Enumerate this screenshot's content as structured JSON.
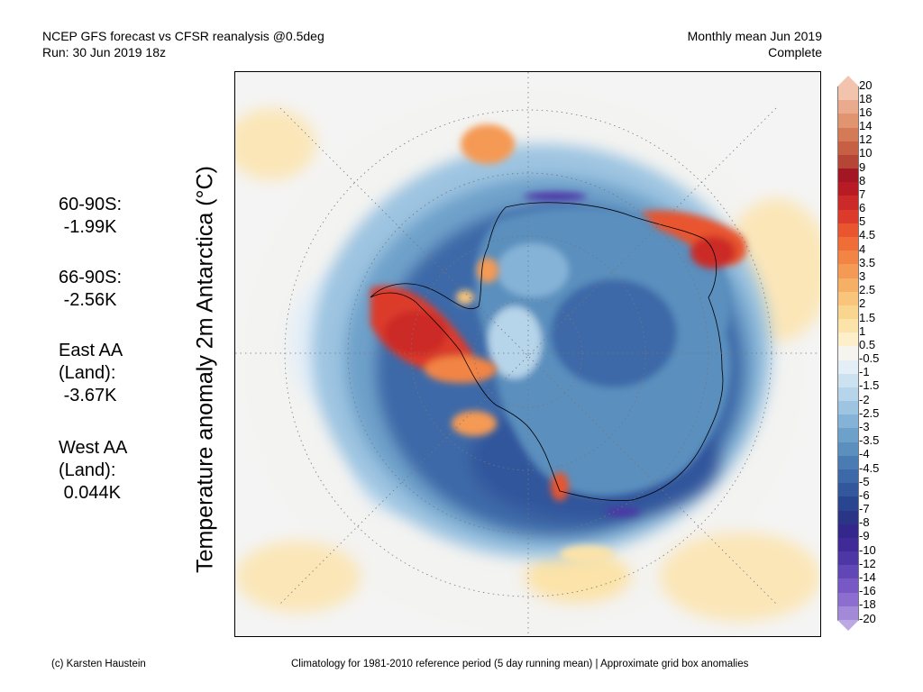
{
  "header": {
    "title_line1": "NCEP GFS forecast vs CFSR reanalysis @0.5deg",
    "title_line2": "Run: 30 Jun 2019 18z",
    "right_line1": "Monthly mean Jun 2019",
    "right_line2": "Complete"
  },
  "axis": {
    "ylabel": "Temperature anomaly 2m Antarctica (°C)"
  },
  "stats": [
    {
      "label": "60-90S:",
      "value": "-1.99K"
    },
    {
      "label": "66-90S:",
      "value": "-2.56K"
    },
    {
      "label": "East AA\n(Land):",
      "value": "-3.67K"
    },
    {
      "label": "West AA\n(Land):",
      "value": "0.044K"
    }
  ],
  "colorbar": {
    "labels": [
      "20",
      "18",
      "16",
      "14",
      "12",
      "10",
      "9",
      "8",
      "7",
      "6",
      "5",
      "4.5",
      "4",
      "3.5",
      "3",
      "2.5",
      "2",
      "1.5",
      "1",
      "0.5",
      "-0.5",
      "-1",
      "-1.5",
      "-2",
      "-2.5",
      "-3",
      "-3.5",
      "-4",
      "-4.5",
      "-5",
      "-6",
      "-7",
      "-8",
      "-9",
      "-10",
      "-12",
      "-14",
      "-16",
      "-18",
      "-20"
    ],
    "colors": [
      "#f2c3ad",
      "#eaaa8d",
      "#e0946f",
      "#d47a57",
      "#c65f43",
      "#b54535",
      "#a31624",
      "#b71c24",
      "#cc2a28",
      "#dc3a2a",
      "#e8552f",
      "#ef6e38",
      "#f28444",
      "#f59a55",
      "#f6b066",
      "#f8c57b",
      "#f9d68f",
      "#fbe3a9",
      "#fcefc9",
      "#f6f4ee",
      "#e3eef7",
      "#cde2f1",
      "#b6d4ea",
      "#9dc4e1",
      "#85b3d7",
      "#6ea1ca",
      "#5a8fbe",
      "#4a7cb3",
      "#3d69a8",
      "#32579c",
      "#2a4590",
      "#2b3585",
      "#33278b",
      "#3f2a98",
      "#4d36a6",
      "#6146b5",
      "#7758c4",
      "#8c6ed0",
      "#a38ad9",
      "#bca8e4"
    ]
  },
  "footer": {
    "credit": "(c) Karsten Haustein",
    "note": "Climatology for 1981-2010 reference period (5 day running mean) | Approximate grid box anomalies"
  },
  "map": {
    "projection": "south polar stereographic",
    "region": "Antarctica",
    "land_outline_color": "#000000",
    "graticule": "dotted"
  }
}
